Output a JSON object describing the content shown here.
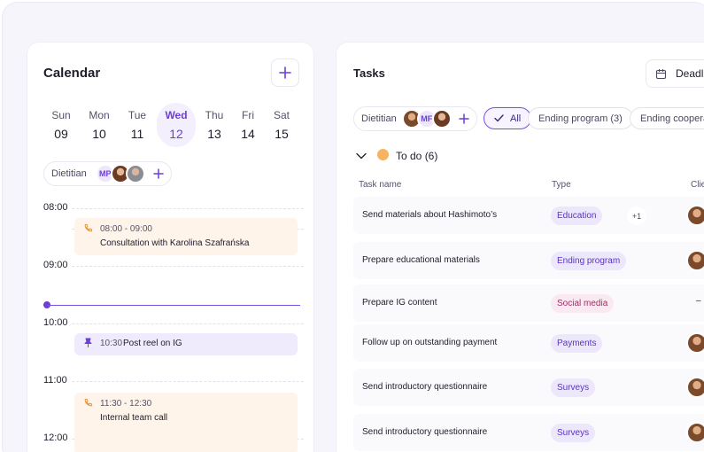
{
  "calendar": {
    "title": "Calendar",
    "add_icon": "plus-icon",
    "days": [
      {
        "name": "Sun",
        "date": "09",
        "active": false
      },
      {
        "name": "Mon",
        "date": "10",
        "active": false
      },
      {
        "name": "Tue",
        "date": "11",
        "active": false
      },
      {
        "name": "Wed",
        "date": "12",
        "active": true
      },
      {
        "name": "Thu",
        "date": "13",
        "active": false
      },
      {
        "name": "Fri",
        "date": "14",
        "active": false
      },
      {
        "name": "Sat",
        "date": "15",
        "active": false
      }
    ],
    "filter": {
      "label": "Dietitian",
      "initials": "MP"
    },
    "times": [
      "08:00",
      "09:00",
      "10:00",
      "11:00",
      "12:00"
    ],
    "events": [
      {
        "time": "08:00 - 09:00",
        "title": "Consultation with Karolina Szafrańska",
        "icon": "phone-icon",
        "color": "orange"
      },
      {
        "time": "10:30",
        "title": "Post reel on IG",
        "icon": "pin-icon",
        "color": "purple"
      },
      {
        "time": "11:30 - 12:30",
        "title": "Internal team call",
        "icon": "phone-icon",
        "color": "orange"
      }
    ]
  },
  "tasks": {
    "title": "Tasks",
    "deadline_label": "Deadli",
    "filter": {
      "label": "Dietitian",
      "initials": "MF"
    },
    "pills": [
      {
        "label": "All",
        "selected": true
      },
      {
        "label": "Ending program (3)",
        "selected": false
      },
      {
        "label": "Ending cooperat",
        "selected": false
      }
    ],
    "group": {
      "label": "To do (6)",
      "dot_color": "#f5b461"
    },
    "columns": [
      "Task name",
      "Type",
      "Clie"
    ],
    "rows": [
      {
        "name": "Send materials about Hashimoto’s",
        "type": "Education",
        "type_style": "violet",
        "extra": "+1",
        "client": "avatar"
      },
      {
        "name": "Prepare educational materials",
        "type": "Ending program",
        "type_style": "violet",
        "extra": "",
        "client": "avatar"
      },
      {
        "name": "Prepare IG content",
        "type": "Social media",
        "type_style": "pink",
        "extra": "",
        "client": "–"
      },
      {
        "name": "Follow up on outstanding payment",
        "type": "Payments",
        "type_style": "violet",
        "extra": "",
        "client": "avatar"
      },
      {
        "name": "Send introductory questionnaire",
        "type": "Surveys",
        "type_style": "violet",
        "extra": "",
        "client": "avatar"
      },
      {
        "name": "Send introductory questionnaire",
        "type": "Surveys",
        "type_style": "violet",
        "extra": "",
        "client": "avatar"
      }
    ]
  },
  "colors": {
    "accent": "#6d3fd6",
    "orange_event": "#fef4ea",
    "purple_event": "#efeafc"
  }
}
